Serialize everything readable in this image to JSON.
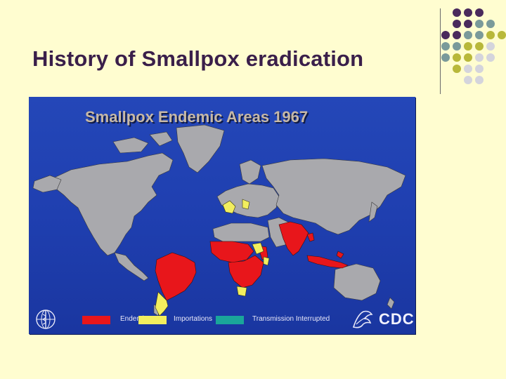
{
  "slide": {
    "title": "History of Smallpox eradication",
    "background_color": "#fffdd0"
  },
  "map": {
    "title": "Smallpox Endemic Areas 1967",
    "legend": [
      {
        "label": "Endemic",
        "color": "#e8161b"
      },
      {
        "label": "Importations",
        "color": "#f2ee5e"
      },
      {
        "label": "Transmission Interrupted",
        "color": "#1aa69a"
      }
    ],
    "endemic_regions": [
      "South America (Brazil)",
      "Sub-Saharan Africa",
      "South Asia",
      "Indonesia"
    ],
    "importation_regions": [
      "Argentina",
      "Western Europe",
      "Eastern Africa",
      "Southern Africa"
    ],
    "logos": {
      "left": "who-emblem",
      "right": "CDC"
    }
  },
  "decoration": {
    "dot_colors": [
      "#4a2a5c",
      "#7a9a9a",
      "#b8b83a",
      "#d4d4dc"
    ]
  }
}
